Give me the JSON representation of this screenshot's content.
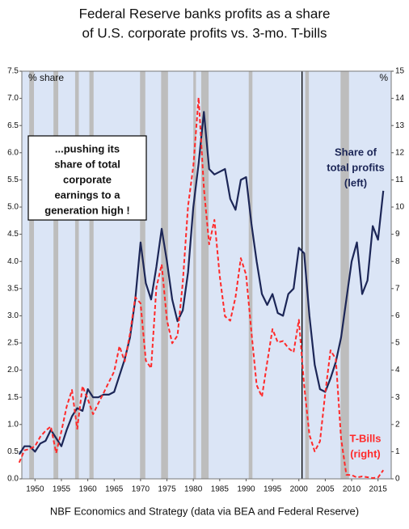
{
  "chart_data": {
    "type": "line",
    "title": [
      "Federal Reserve banks profits as a share",
      "of U.S. corporate profits vs. 3-mo. T-bills"
    ],
    "ylabel": "% share",
    "y2label": "%",
    "source": "NBF Economics and Strategy (data via BEA and Federal Reserve)",
    "annotation": [
      "...pushing its",
      "share of total",
      "corporate",
      "earnings to a",
      "generation high !"
    ],
    "x": [
      1947,
      1948,
      1949,
      1950,
      1951,
      1952,
      1953,
      1954,
      1955,
      1956,
      1957,
      1958,
      1959,
      1960,
      1961,
      1962,
      1963,
      1964,
      1965,
      1966,
      1967,
      1968,
      1969,
      1970,
      1971,
      1972,
      1973,
      1974,
      1975,
      1976,
      1977,
      1978,
      1979,
      1980,
      1981,
      1982,
      1983,
      1984,
      1985,
      1986,
      1987,
      1988,
      1989,
      1990,
      1991,
      1992,
      1993,
      1994,
      1995,
      1996,
      1997,
      1998,
      1999,
      2000,
      2001,
      2002,
      2003,
      2004,
      2005,
      2006,
      2007,
      2008,
      2009,
      2010,
      2011,
      2012,
      2013,
      2014,
      2015,
      2016
    ],
    "series": [
      {
        "name": [
          "Share of",
          "total profits",
          "(left)"
        ],
        "color": "#1c2657",
        "dash": false,
        "values": [
          0.45,
          0.6,
          0.6,
          0.5,
          0.65,
          0.7,
          0.9,
          0.75,
          0.6,
          0.9,
          1.15,
          1.3,
          1.25,
          1.65,
          1.5,
          1.5,
          1.55,
          1.55,
          1.6,
          1.9,
          2.2,
          2.6,
          3.3,
          4.35,
          3.6,
          3.3,
          3.9,
          4.6,
          4.0,
          3.3,
          2.9,
          3.1,
          3.8,
          5.0,
          5.8,
          6.75,
          5.7,
          5.6,
          5.65,
          5.7,
          5.15,
          4.95,
          5.5,
          5.55,
          4.7,
          4.0,
          3.4,
          3.2,
          3.4,
          3.05,
          3.0,
          3.4,
          3.5,
          4.25,
          4.15,
          3.0,
          2.1,
          1.65,
          1.6,
          1.85,
          2.15,
          2.6,
          3.3,
          4.0,
          4.35,
          3.4,
          3.65,
          4.65,
          4.4,
          5.3
        ]
      },
      {
        "name": [
          "T-Bills",
          "(right)"
        ],
        "color": "#ff2a2a",
        "dash": true,
        "axis": "y2",
        "values": [
          0.6,
          1.05,
          1.1,
          1.2,
          1.55,
          1.77,
          1.93,
          0.95,
          1.75,
          2.66,
          3.27,
          1.84,
          3.41,
          2.93,
          2.38,
          2.78,
          3.16,
          3.56,
          3.95,
          4.88,
          4.32,
          5.34,
          6.68,
          6.46,
          4.35,
          4.07,
          7.04,
          7.89,
          5.84,
          4.99,
          5.27,
          7.22,
          10.04,
          11.51,
          14.03,
          10.69,
          8.63,
          9.53,
          7.47,
          5.98,
          5.82,
          6.69,
          8.12,
          7.51,
          5.42,
          3.45,
          3.02,
          4.29,
          5.51,
          5.02,
          5.07,
          4.81,
          4.66,
          5.85,
          3.44,
          1.62,
          1.01,
          1.38,
          3.16,
          4.73,
          4.41,
          1.48,
          0.15,
          0.14,
          0.05,
          0.09,
          0.06,
          0.03,
          0.05,
          0.32
        ]
      }
    ],
    "recessions": [
      [
        1948.9,
        1949.8
      ],
      [
        1953.5,
        1954.4
      ],
      [
        1957.6,
        1958.3
      ],
      [
        1960.3,
        1961.1
      ],
      [
        1969.9,
        1970.9
      ],
      [
        1973.9,
        1975.2
      ],
      [
        1980.0,
        1980.5
      ],
      [
        1981.5,
        1982.9
      ],
      [
        1990.5,
        1991.2
      ],
      [
        2001.2,
        2001.9
      ],
      [
        2007.9,
        2009.5
      ]
    ],
    "vline": 2000.6,
    "xlim": [
      1947.5,
      2017.5
    ],
    "xticks": [
      1950,
      1955,
      1960,
      1965,
      1970,
      1975,
      1980,
      1985,
      1990,
      1995,
      2000,
      2005,
      2010,
      2015
    ],
    "ylim": [
      0,
      7.5
    ],
    "yticks": [
      {
        "value": 0,
        "label": "0.0"
      },
      0.5,
      {
        "value": 1,
        "label": "1.0"
      },
      1.5,
      {
        "value": 2,
        "label": "2.0"
      },
      2.5,
      {
        "value": 3,
        "label": "3.0"
      },
      3.5,
      {
        "value": 4,
        "label": "4.0"
      },
      4.5,
      {
        "value": 5,
        "label": "5.0"
      },
      5.5,
      {
        "value": 6,
        "label": "6.0"
      },
      6.5,
      {
        "value": 7,
        "label": "7.0"
      },
      7.5
    ],
    "y2lim": [
      0,
      15
    ],
    "y2ticks": [
      0,
      1,
      2,
      3,
      4,
      5,
      6,
      7,
      8,
      9,
      10,
      11,
      12,
      13,
      14,
      15
    ],
    "background": "#dbe5f6",
    "recession_color": "#bdbdbd"
  }
}
